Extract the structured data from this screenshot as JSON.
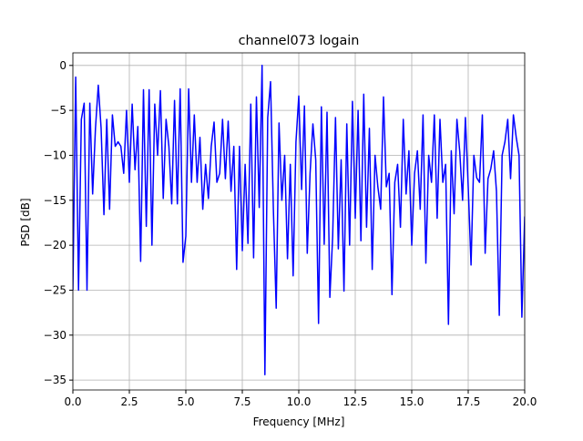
{
  "chart_data": {
    "type": "line",
    "title": "channel073 logain",
    "x_label": "Frequency [MHz]",
    "y_label": "PSD [dB]",
    "xlim": [
      0,
      20
    ],
    "ylim": [
      -36.1,
      1.4
    ],
    "xticks": [
      {
        "value": 0,
        "label": "0.0"
      },
      {
        "value": 2.5,
        "label": "2.5"
      },
      {
        "value": 5,
        "label": "5.0"
      },
      {
        "value": 7.5,
        "label": "7.5"
      },
      {
        "value": 10,
        "label": "10.0"
      },
      {
        "value": 12.5,
        "label": "12.5"
      },
      {
        "value": 15,
        "label": "15.0"
      },
      {
        "value": 17.5,
        "label": "17.5"
      },
      {
        "value": 20,
        "label": "20.0"
      }
    ],
    "yticks": [
      {
        "value": 0,
        "label": "0"
      },
      {
        "value": -5,
        "label": "−5"
      },
      {
        "value": -10,
        "label": "−10"
      },
      {
        "value": -15,
        "label": "−15"
      },
      {
        "value": -20,
        "label": "−20"
      },
      {
        "value": -25,
        "label": "−25"
      },
      {
        "value": -30,
        "label": "−30"
      },
      {
        "value": -35,
        "label": "−35"
      }
    ],
    "grid": true,
    "x": [
      0,
      0.125,
      0.25,
      0.375,
      0.5,
      0.625,
      0.75,
      0.875,
      1,
      1.125,
      1.25,
      1.375,
      1.5,
      1.625,
      1.75,
      1.875,
      2,
      2.125,
      2.25,
      2.375,
      2.5,
      2.625,
      2.75,
      2.875,
      3,
      3.125,
      3.25,
      3.375,
      3.5,
      3.625,
      3.75,
      3.875,
      4,
      4.125,
      4.25,
      4.375,
      4.5,
      4.625,
      4.75,
      4.875,
      5,
      5.125,
      5.25,
      5.375,
      5.5,
      5.625,
      5.75,
      5.875,
      6,
      6.125,
      6.25,
      6.375,
      6.5,
      6.625,
      6.75,
      6.875,
      7,
      7.125,
      7.25,
      7.375,
      7.5,
      7.625,
      7.75,
      7.875,
      8,
      8.125,
      8.25,
      8.375,
      8.5,
      8.625,
      8.75,
      8.875,
      9,
      9.125,
      9.25,
      9.375,
      9.5,
      9.625,
      9.75,
      9.875,
      10,
      10.125,
      10.25,
      10.375,
      10.5,
      10.625,
      10.75,
      10.875,
      11,
      11.125,
      11.25,
      11.375,
      11.5,
      11.625,
      11.75,
      11.875,
      12,
      12.125,
      12.25,
      12.375,
      12.5,
      12.625,
      12.75,
      12.875,
      13,
      13.125,
      13.25,
      13.375,
      13.5,
      13.625,
      13.75,
      13.875,
      14,
      14.125,
      14.25,
      14.375,
      14.5,
      14.625,
      14.75,
      14.875,
      15,
      15.125,
      15.25,
      15.375,
      15.5,
      15.625,
      15.75,
      15.875,
      16,
      16.125,
      16.25,
      16.375,
      16.5,
      16.625,
      16.75,
      16.875,
      17,
      17.125,
      17.25,
      17.375,
      17.5,
      17.625,
      17.75,
      17.875,
      18,
      18.125,
      18.25,
      18.375,
      18.5,
      18.625,
      18.75,
      18.875,
      19,
      19.125,
      19.25,
      19.375,
      19.5,
      19.625,
      19.75,
      19.875,
      20
    ],
    "series": [
      {
        "name": "logain",
        "color": "#0000ff",
        "values": [
          -25,
          -1.3,
          -25,
          -6,
          -4.2,
          -25,
          -4.2,
          -14.3,
          -7,
          -2.2,
          -7,
          -16.6,
          -6,
          -16,
          -5.5,
          -9,
          -8.5,
          -9,
          -12,
          -5,
          -13,
          -4.3,
          -11.6,
          -6.8,
          -21.8,
          -2.7,
          -17.9,
          -2.7,
          -20,
          -4.3,
          -10,
          -2.8,
          -14.8,
          -6,
          -9,
          -15.4,
          -3.9,
          -15.4,
          -2.6,
          -21.9,
          -19,
          -2.6,
          -13,
          -5.5,
          -13,
          -8,
          -16,
          -11,
          -14.8,
          -9,
          -6.3,
          -13,
          -12,
          -6,
          -12.6,
          -6.2,
          -14,
          -9,
          -22.7,
          -9,
          -20.6,
          -11,
          -19.8,
          -4.3,
          -21.4,
          -3.5,
          -15.8,
          0,
          -34.4,
          -5.8,
          -1.8,
          -16,
          -27,
          -6.4,
          -15,
          -10,
          -21.5,
          -11,
          -23.4,
          -8.5,
          -3.4,
          -13.8,
          -4.5,
          -20.9,
          -12,
          -6.5,
          -10.5,
          -28.7,
          -4.6,
          -19.9,
          -5.2,
          -25.8,
          -19,
          -5.8,
          -20.4,
          -10.5,
          -25.1,
          -6.5,
          -20,
          -4,
          -17,
          -5,
          -19.5,
          -3.2,
          -18,
          -7,
          -22.7,
          -10,
          -13.5,
          -16,
          -3.5,
          -13.5,
          -12,
          -25.5,
          -13,
          -11,
          -18,
          -6,
          -14.3,
          -9.5,
          -20,
          -12,
          -9.5,
          -16,
          -5.5,
          -22,
          -10,
          -13,
          -5.5,
          -17,
          -6,
          -13,
          -11,
          -28.8,
          -9.5,
          -16.5,
          -6,
          -9.6,
          -15,
          -5.8,
          -13.5,
          -22.2,
          -10,
          -12.5,
          -13,
          -5.5,
          -20.9,
          -12.6,
          -11.5,
          -9.5,
          -14,
          -27.8,
          -10,
          -8.5,
          -6,
          -12.6,
          -5.5,
          -8,
          -10,
          -28,
          -16.8
        ]
      }
    ]
  }
}
